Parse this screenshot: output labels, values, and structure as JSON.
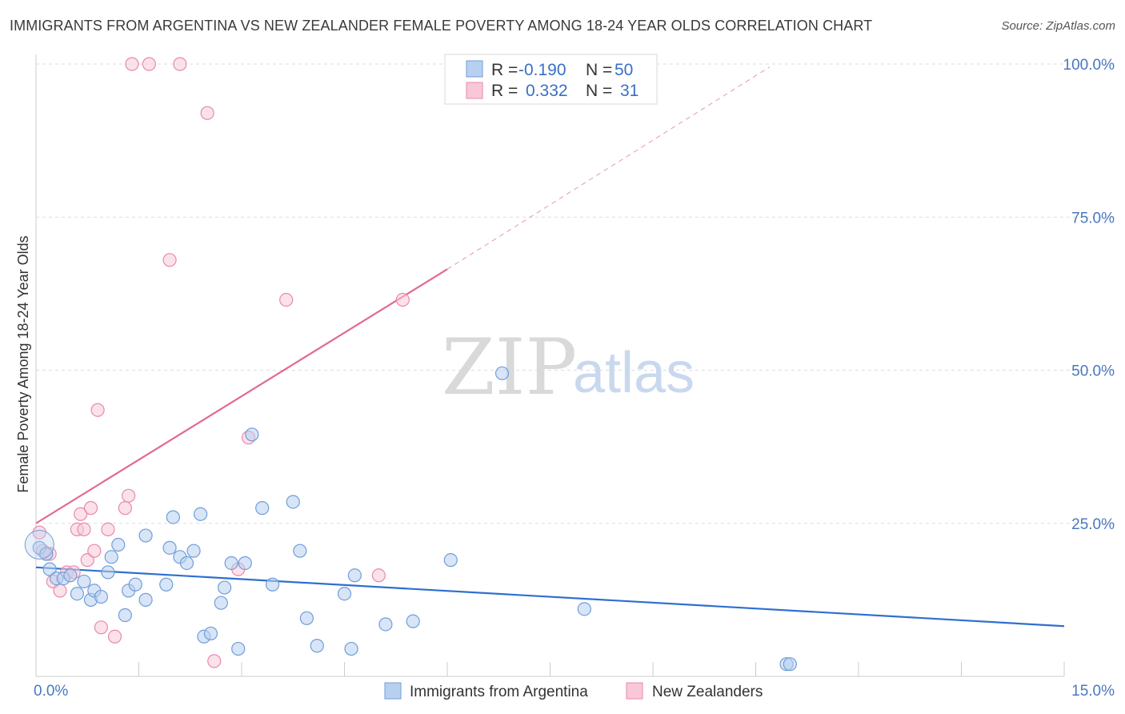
{
  "title": "IMMIGRANTS FROM ARGENTINA VS NEW ZEALANDER FEMALE POVERTY AMONG 18-24 YEAR OLDS CORRELATION CHART",
  "source": "Source: ZipAtlas.com",
  "watermark": {
    "zip": "ZIP",
    "atlas": "atlas"
  },
  "colors": {
    "blue_fill": "#b8d0f0",
    "blue_stroke": "#6f9ed8",
    "blue_line": "#2f6fcf",
    "pink_fill": "#f8c8d8",
    "pink_stroke": "#e88aa8",
    "pink_line": "#e06b92",
    "grid": "#dddddd",
    "tick_text": "#4a78c0"
  },
  "legend": {
    "rows": [
      {
        "r_label": "R =",
        "r_value": "-0.190",
        "n_label": "N =",
        "n_value": "50"
      },
      {
        "r_label": "R =",
        "r_value": "0.332",
        "n_label": "N =",
        "n_value": "31"
      }
    ]
  },
  "chart_data": {
    "type": "scatter",
    "title": "IMMIGRANTS FROM ARGENTINA VS NEW ZEALANDER FEMALE POVERTY AMONG 18-24 YEAR OLDS CORRELATION CHART",
    "xlabel": "",
    "ylabel": "Female Poverty Among 18-24 Year Olds",
    "xlim": [
      0,
      15
    ],
    "ylim": [
      0,
      100
    ],
    "x_tick_labels": [
      "0.0%",
      "15.0%"
    ],
    "y_ticks": [
      25,
      50,
      75,
      100
    ],
    "y_tick_labels": [
      "25.0%",
      "50.0%",
      "75.0%",
      "100.0%"
    ],
    "grid": "horizontal dashed",
    "legend_position": "top-center",
    "series": [
      {
        "name": "Immigrants from Argentina",
        "color": "#6f9ed8",
        "trend": {
          "x": [
            0,
            15
          ],
          "y": [
            17.8,
            8.2
          ]
        },
        "points": [
          [
            0.05,
            21.0
          ],
          [
            0.15,
            20.0
          ],
          [
            0.2,
            17.5
          ],
          [
            0.3,
            16.0
          ],
          [
            0.4,
            16.0
          ],
          [
            0.5,
            16.5
          ],
          [
            0.6,
            13.5
          ],
          [
            0.7,
            15.5
          ],
          [
            0.8,
            12.5
          ],
          [
            0.85,
            14.0
          ],
          [
            0.95,
            13.0
          ],
          [
            1.05,
            17.0
          ],
          [
            1.1,
            19.5
          ],
          [
            1.2,
            21.5
          ],
          [
            1.3,
            10.0
          ],
          [
            1.35,
            14.0
          ],
          [
            1.45,
            15.0
          ],
          [
            1.6,
            12.5
          ],
          [
            1.6,
            23.0
          ],
          [
            1.9,
            15.0
          ],
          [
            1.95,
            21.0
          ],
          [
            2.0,
            26.0
          ],
          [
            2.1,
            19.5
          ],
          [
            2.2,
            18.5
          ],
          [
            2.3,
            20.5
          ],
          [
            2.4,
            26.5
          ],
          [
            2.45,
            6.5
          ],
          [
            2.55,
            7.0
          ],
          [
            2.7,
            12.0
          ],
          [
            2.75,
            14.5
          ],
          [
            2.85,
            18.5
          ],
          [
            2.95,
            4.5
          ],
          [
            3.05,
            18.5
          ],
          [
            3.15,
            39.5
          ],
          [
            3.3,
            27.5
          ],
          [
            3.45,
            15.0
          ],
          [
            3.75,
            28.5
          ],
          [
            3.85,
            20.5
          ],
          [
            3.95,
            9.5
          ],
          [
            4.1,
            5.0
          ],
          [
            4.5,
            13.5
          ],
          [
            4.6,
            4.5
          ],
          [
            4.65,
            16.5
          ],
          [
            5.1,
            8.5
          ],
          [
            5.5,
            9.0
          ],
          [
            6.05,
            19.0
          ],
          [
            6.8,
            49.5
          ],
          [
            8.0,
            11.0
          ],
          [
            10.95,
            2.0
          ],
          [
            11.0,
            2.0
          ]
        ]
      },
      {
        "name": "New Zealanders",
        "color": "#e88aa8",
        "trend": {
          "x": [
            0,
            6.0
          ],
          "y": [
            25.0,
            66.5
          ]
        },
        "trend_extension": {
          "x": [
            6.0,
            10.7
          ],
          "y": [
            66.5,
            99.5
          ]
        },
        "points": [
          [
            0.05,
            23.5
          ],
          [
            0.1,
            20.5
          ],
          [
            0.2,
            20.0
          ],
          [
            0.25,
            15.5
          ],
          [
            0.35,
            14.0
          ],
          [
            0.45,
            17.0
          ],
          [
            0.55,
            17.0
          ],
          [
            0.6,
            24.0
          ],
          [
            0.65,
            26.5
          ],
          [
            0.7,
            24.0
          ],
          [
            0.75,
            19.0
          ],
          [
            0.8,
            27.5
          ],
          [
            0.85,
            20.5
          ],
          [
            0.9,
            43.5
          ],
          [
            0.95,
            8.0
          ],
          [
            1.05,
            24.0
          ],
          [
            1.15,
            6.5
          ],
          [
            1.3,
            27.5
          ],
          [
            1.35,
            29.5
          ],
          [
            1.4,
            100.0
          ],
          [
            1.65,
            100.0
          ],
          [
            2.1,
            100.0
          ],
          [
            1.95,
            68.0
          ],
          [
            2.5,
            92.0
          ],
          [
            2.6,
            2.5
          ],
          [
            2.95,
            17.5
          ],
          [
            3.1,
            39.0
          ],
          [
            3.65,
            61.5
          ],
          [
            5.0,
            16.5
          ],
          [
            5.35,
            61.5
          ],
          [
            0.15,
            20.0
          ]
        ]
      }
    ]
  },
  "bottom_legend": [
    {
      "label": "Immigrants from Argentina"
    },
    {
      "label": "New Zealanders"
    }
  ]
}
